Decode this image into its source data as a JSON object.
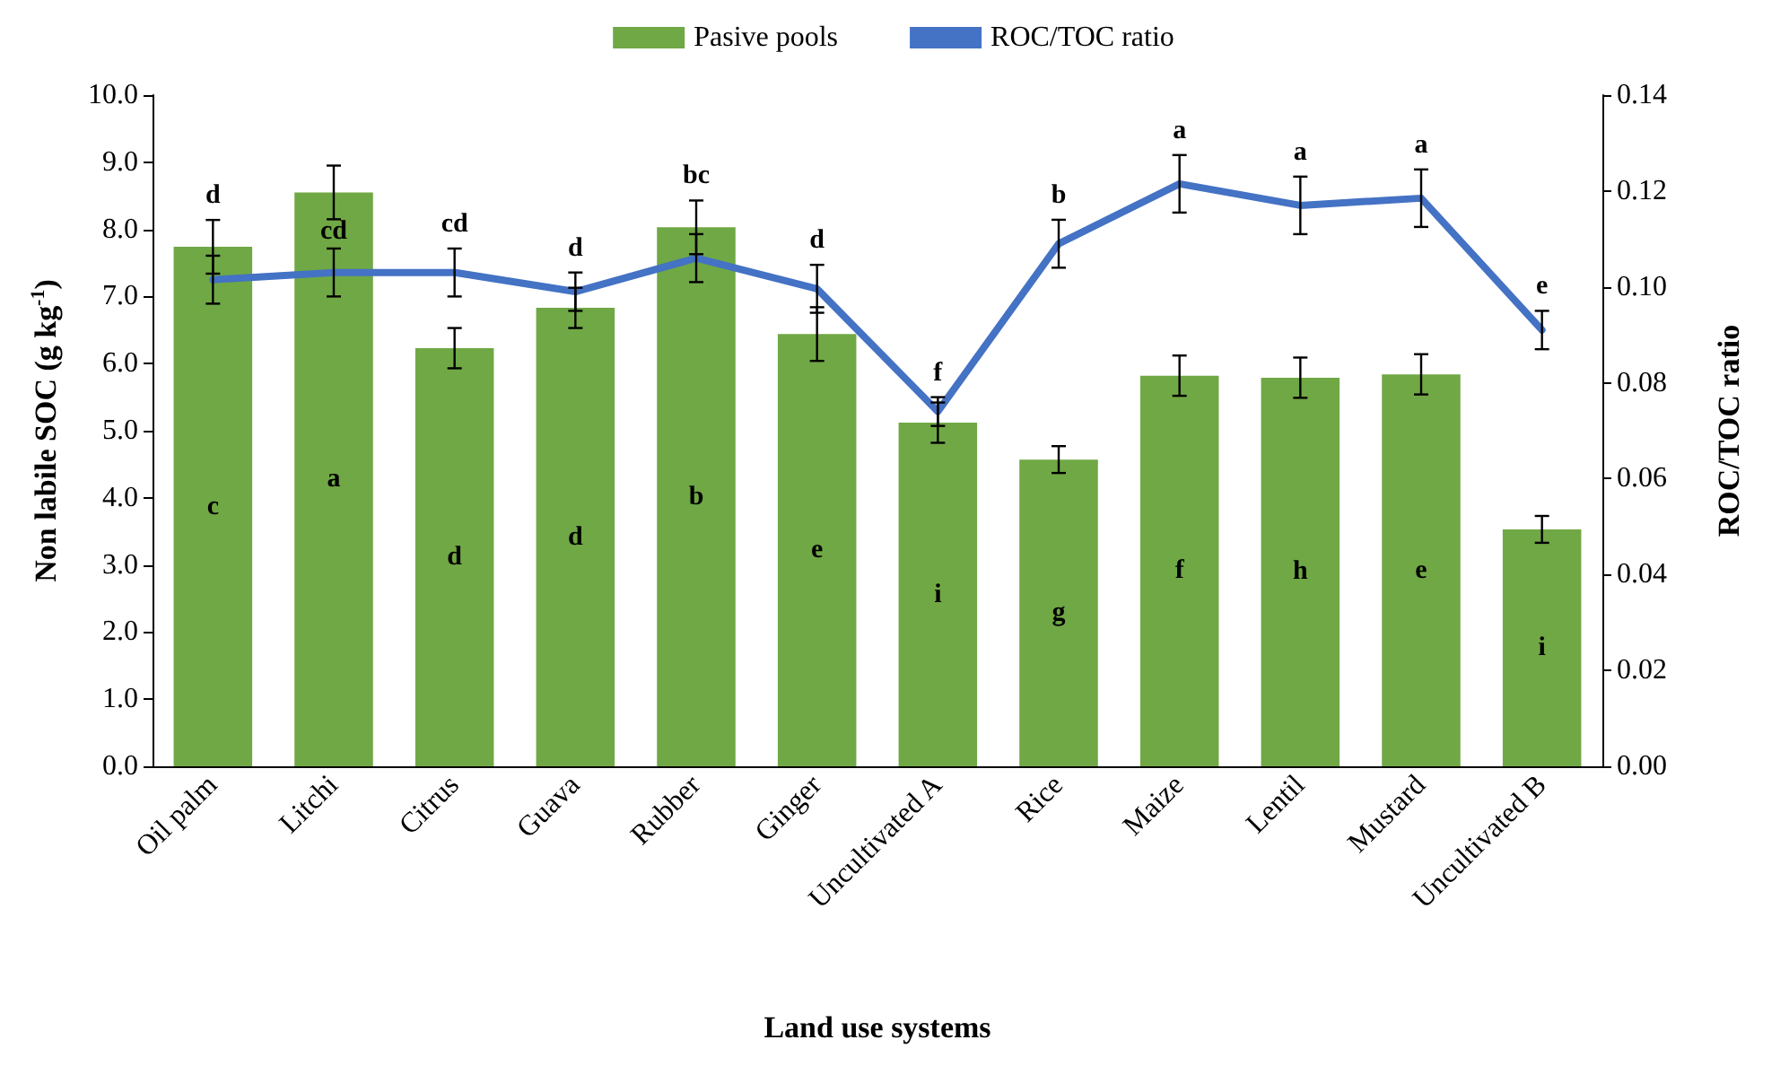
{
  "chart_data": {
    "type": "bar",
    "xlabel": "Land use systems",
    "ylabel": "Non labile SOC (g kg$^{-1}$)",
    "y2label": "ROC/TOC ratio",
    "categories": [
      "Oil palm",
      "Litchi",
      "Citrus",
      "Guava",
      "Rubber",
      "Ginger",
      "Uncultivated A",
      "Rice",
      "Maize",
      "Lentil",
      "Mustard",
      "Uncultivated B"
    ],
    "series": [
      {
        "name": "Pasive pools",
        "color": "#70a845",
        "values": [
          7.74,
          8.55,
          6.23,
          6.83,
          8.03,
          6.44,
          5.12,
          4.57,
          5.82,
          5.79,
          5.84,
          3.53
        ],
        "errors": [
          0.4,
          0.4,
          0.3,
          0.3,
          0.4,
          0.4,
          0.3,
          0.2,
          0.3,
          0.3,
          0.3,
          0.2
        ],
        "value_labels": [
          "c",
          "a",
          "d",
          "d",
          "b",
          "e",
          "i",
          "g",
          "f",
          "h",
          "e",
          "i"
        ]
      },
      {
        "name": "ROC/TOC ratio",
        "type": "line",
        "axis": "y2",
        "color": "#4472c4",
        "values": [
          0.1015,
          0.103,
          0.103,
          0.099,
          0.106,
          0.0996,
          0.074,
          0.109,
          0.1215,
          0.117,
          0.1185,
          0.091
        ],
        "errors": [
          0.005,
          0.005,
          0.005,
          0.004,
          0.005,
          0.005,
          0.003,
          0.005,
          0.006,
          0.006,
          0.006,
          0.004
        ],
        "value_labels": [
          "d",
          "cd",
          "cd",
          "d",
          "bc",
          "d",
          "f",
          "b",
          "a",
          "a",
          "a",
          "e"
        ]
      }
    ],
    "ylim": [
      0,
      10
    ],
    "yticks": [
      {
        "value": 0,
        "label": "0.0"
      },
      {
        "value": 1,
        "label": "1.0"
      },
      {
        "value": 2,
        "label": "2.0"
      },
      {
        "value": 3,
        "label": "3.0"
      },
      {
        "value": 4,
        "label": "4.0"
      },
      {
        "value": 5,
        "label": "5.0"
      },
      {
        "value": 6,
        "label": "6.0"
      },
      {
        "value": 7,
        "label": "7.0"
      },
      {
        "value": 8,
        "label": "8.0"
      },
      {
        "value": 9,
        "label": "9.0"
      },
      {
        "value": 10,
        "label": "10.0"
      }
    ],
    "y2lim": [
      0,
      0.14
    ],
    "y2ticks": [
      {
        "value": 0,
        "label": "0.00"
      },
      {
        "value": 0.02,
        "label": "0.02"
      },
      {
        "value": 0.04,
        "label": "0.04"
      },
      {
        "value": 0.06,
        "label": "0.06"
      },
      {
        "value": 0.08,
        "label": "0.08"
      },
      {
        "value": 0.1,
        "label": "0.10"
      },
      {
        "value": 0.12,
        "label": "0.12"
      },
      {
        "value": 0.14,
        "label": "0.14"
      }
    ],
    "legend": "top",
    "marker": "none",
    "line_style": "solid"
  }
}
